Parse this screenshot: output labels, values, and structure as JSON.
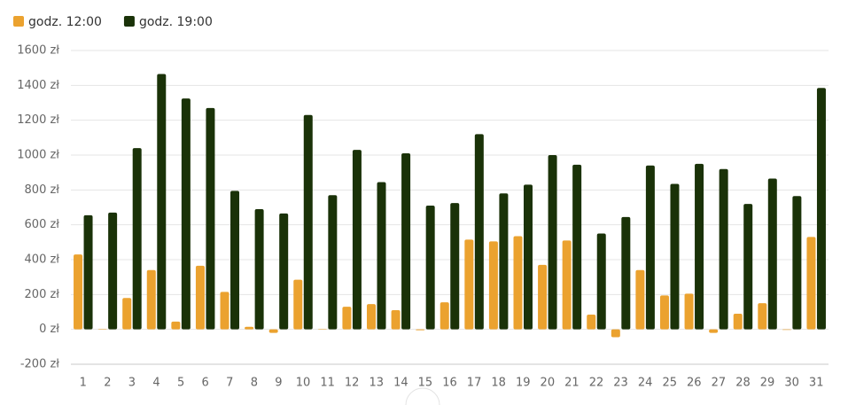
{
  "chart_data": {
    "type": "bar",
    "categories": [
      "1",
      "2",
      "3",
      "4",
      "5",
      "6",
      "7",
      "8",
      "9",
      "10",
      "11",
      "12",
      "13",
      "14",
      "15",
      "16",
      "17",
      "18",
      "19",
      "20",
      "21",
      "22",
      "23",
      "24",
      "25",
      "26",
      "27",
      "28",
      "29",
      "30",
      "31"
    ],
    "series": [
      {
        "name": "godz. 12:00",
        "color": "#eba22f",
        "values": [
          430,
          3,
          180,
          340,
          45,
          365,
          215,
          15,
          -20,
          285,
          2,
          130,
          145,
          110,
          -5,
          155,
          515,
          505,
          535,
          370,
          510,
          85,
          -45,
          340,
          195,
          205,
          -20,
          90,
          150,
          -3,
          530
        ]
      },
      {
        "name": "godz. 19:00",
        "color": "#1a3208",
        "values": [
          655,
          670,
          1040,
          1465,
          1325,
          1270,
          795,
          690,
          665,
          1230,
          770,
          1030,
          845,
          1010,
          710,
          725,
          1120,
          780,
          830,
          1000,
          945,
          550,
          645,
          940,
          835,
          950,
          920,
          720,
          865,
          765,
          1385
        ]
      }
    ],
    "ylim": [
      -200,
      1600
    ],
    "yticks": [
      {
        "value": -200,
        "label": "-200 zł"
      },
      {
        "value": 0,
        "label": "0 zł"
      },
      {
        "value": 200,
        "label": "200 zł"
      },
      {
        "value": 400,
        "label": "400 zł"
      },
      {
        "value": 600,
        "label": "600 zł"
      },
      {
        "value": 800,
        "label": "800 zł"
      },
      {
        "value": 1000,
        "label": "1000 zł"
      },
      {
        "value": 1200,
        "label": "1200 zł"
      },
      {
        "value": 1400,
        "label": "1400 zł"
      },
      {
        "value": 1600,
        "label": "1600 zł"
      }
    ],
    "grid": true,
    "legend": "top-left"
  }
}
